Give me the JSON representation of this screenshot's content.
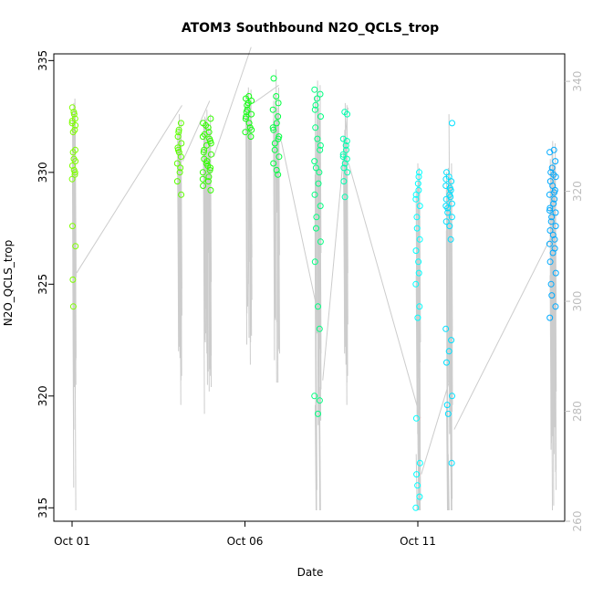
{
  "chart_data": {
    "type": "scatter",
    "title": "ATOM3 Southbound N2O_QCLS_trop",
    "xlabel": "Date",
    "ylabel": "N2O_QCLS_trop",
    "x_ticks": [
      "Oct 01",
      "Oct 06",
      "Oct 11"
    ],
    "x_range_days": [
      0,
      14
    ],
    "ylim": [
      314.4,
      335.3
    ],
    "y_ticks": [
      315,
      320,
      325,
      330,
      335
    ],
    "y2_ticks": [
      260,
      280,
      300,
      320,
      340
    ],
    "y2lim": [
      260,
      345
    ],
    "grid": false,
    "colors": {
      "profile_line": "#cccccc",
      "axis": "#000000",
      "right_axis": "#bdbdbd"
    },
    "flights": [
      {
        "day": 0.05,
        "spread": 0.08,
        "color": "#7FFF00",
        "values": [
          332.7,
          332.4,
          332.2,
          331.9,
          332.6,
          332.9,
          332.1,
          331.8,
          330.9,
          330.5,
          330.3,
          330.1,
          329.9,
          329.7,
          330.0,
          330.6,
          327.6,
          326.7,
          325.2,
          324.0,
          331.0,
          332.3
        ]
      },
      {
        "day": 3.1,
        "spread": 0.1,
        "color": "#5CFF00",
        "values": [
          332.2,
          331.9,
          331.6,
          331.3,
          331.1,
          330.9,
          330.7,
          330.4,
          330.2,
          330.0,
          329.6,
          329.0,
          331.8,
          331.0
        ]
      },
      {
        "day": 3.9,
        "spread": 0.2,
        "color": "#33FF00",
        "values": [
          332.4,
          332.2,
          332.0,
          331.8,
          331.6,
          331.4,
          331.2,
          331.0,
          330.8,
          330.6,
          330.4,
          330.2,
          330.0,
          329.8,
          329.6,
          329.4,
          329.2,
          332.1,
          331.7,
          331.3,
          330.9,
          330.5,
          330.1,
          329.7,
          331.5,
          330.3
        ]
      },
      {
        "day": 5.1,
        "spread": 0.15,
        "color": "#10FF10",
        "values": [
          333.4,
          333.3,
          333.2,
          333.0,
          332.8,
          332.6,
          332.4,
          332.2,
          332.0,
          331.8,
          331.6,
          333.1,
          332.5,
          331.9,
          332.7
        ]
      },
      {
        "day": 5.9,
        "spread": 0.15,
        "color": "#00FF40",
        "values": [
          334.2,
          333.4,
          333.1,
          332.8,
          332.5,
          332.2,
          331.9,
          331.6,
          331.3,
          331.0,
          330.7,
          330.4,
          330.1,
          329.9,
          332.0,
          331.5
        ]
      },
      {
        "day": 7.1,
        "spread": 0.15,
        "color": "#00FF80",
        "values": [
          333.7,
          333.5,
          333.3,
          333.0,
          332.5,
          332.0,
          331.5,
          331.0,
          330.5,
          330.0,
          329.5,
          329.0,
          328.5,
          328.0,
          327.5,
          326.9,
          326.0,
          324.0,
          323.0,
          320.0,
          319.8,
          319.2,
          332.8,
          331.2,
          330.2
        ]
      },
      {
        "day": 7.9,
        "spread": 0.1,
        "color": "#00FFB0",
        "values": [
          332.7,
          332.6,
          331.5,
          331.2,
          331.0,
          330.8,
          330.6,
          330.4,
          330.2,
          330.0,
          329.6,
          328.9,
          331.4,
          330.7
        ]
      },
      {
        "day": 10.0,
        "spread": 0.1,
        "color": "#00FFFF",
        "values": [
          330.0,
          329.5,
          329.0,
          328.5,
          328.0,
          327.5,
          327.0,
          326.5,
          326.0,
          325.5,
          325.0,
          324.0,
          323.5,
          319.0,
          317.0,
          316.5,
          316.0,
          315.5,
          315.0,
          329.8,
          329.2,
          328.8
        ]
      },
      {
        "day": 10.9,
        "spread": 0.15,
        "color": "#00E0FF",
        "values": [
          332.2,
          330.0,
          329.8,
          329.6,
          329.4,
          329.2,
          329.0,
          328.8,
          328.6,
          328.4,
          328.2,
          328.0,
          327.8,
          327.6,
          327.0,
          323.0,
          322.5,
          322.0,
          321.5,
          320.0,
          319.6,
          319.2,
          317.0,
          329.7,
          329.3,
          328.9,
          328.5
        ]
      },
      {
        "day": 13.9,
        "spread": 0.15,
        "color": "#00AAFF",
        "values": [
          331.0,
          330.9,
          330.5,
          330.2,
          330.0,
          329.8,
          329.6,
          329.4,
          329.2,
          329.0,
          328.8,
          328.6,
          328.4,
          328.2,
          328.0,
          327.8,
          327.6,
          327.4,
          327.2,
          327.0,
          326.8,
          326.6,
          326.4,
          326.0,
          325.5,
          325.0,
          324.5,
          324.0,
          323.5,
          329.9,
          329.1,
          328.3
        ]
      }
    ]
  }
}
